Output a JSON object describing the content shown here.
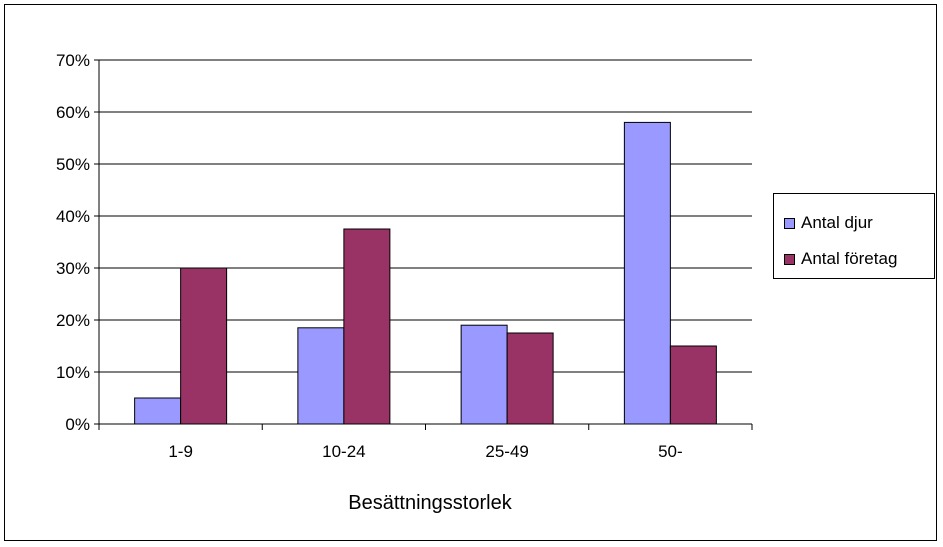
{
  "chart_data": {
    "type": "bar",
    "categories": [
      "1-9",
      "10-24",
      "25-49",
      "50-"
    ],
    "series": [
      {
        "name": "Antal djur",
        "color": "#9999ff",
        "values": [
          5,
          18.5,
          19,
          58
        ]
      },
      {
        "name": "Antal företag",
        "color": "#993366",
        "values": [
          30,
          37.5,
          17.5,
          15
        ]
      }
    ],
    "xlabel": "Besättningsstorlek",
    "ylabel": "",
    "ylim": [
      0,
      70
    ],
    "yticks": [
      "0%",
      "10%",
      "20%",
      "30%",
      "40%",
      "50%",
      "60%",
      "70%"
    ],
    "grid": true,
    "legend_position": "right"
  }
}
